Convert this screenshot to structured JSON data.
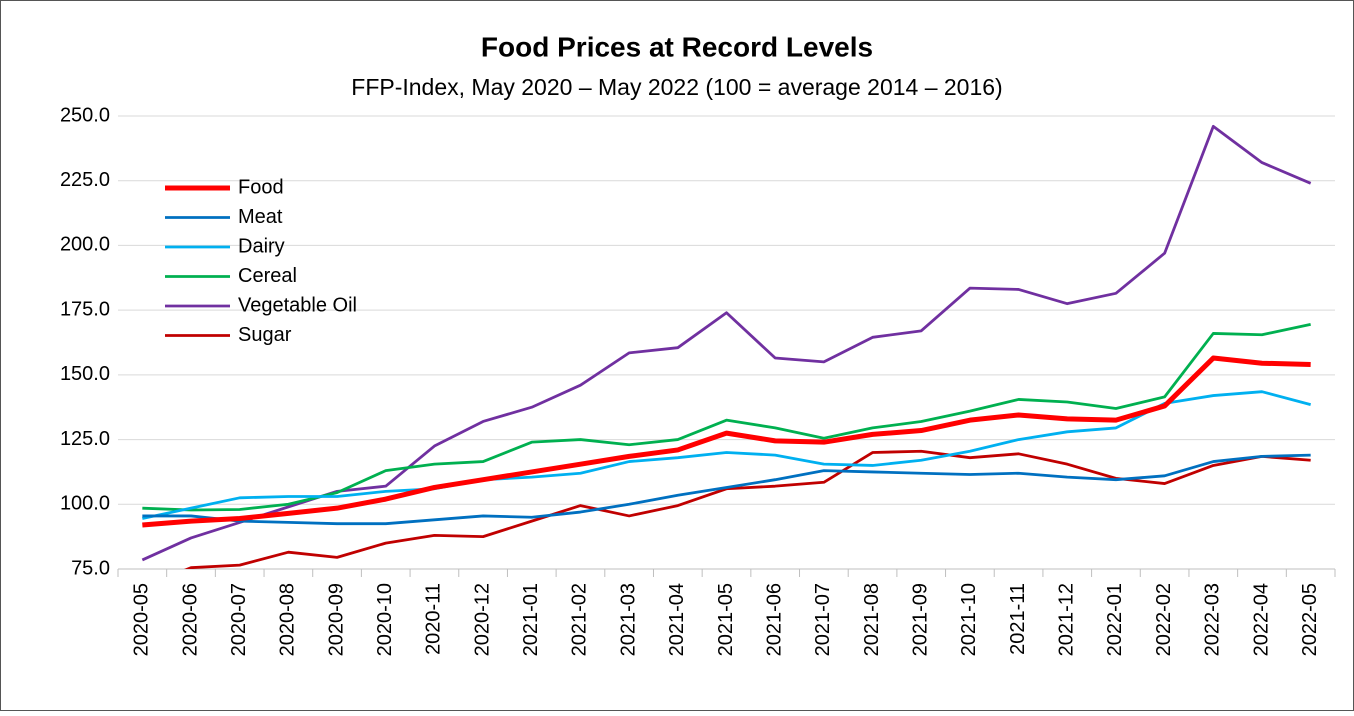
{
  "chart_data": {
    "type": "line",
    "title": "Food Prices at Record Levels",
    "subtitle": "FFP-Index, May 2020 – May 2022 (100 = average 2014 – 2016)",
    "categories": [
      "2020-05",
      "2020-06",
      "2020-07",
      "2020-08",
      "2020-09",
      "2020-10",
      "2020-11",
      "2020-12",
      "2021-01",
      "2021-02",
      "2021-03",
      "2021-04",
      "2021-05",
      "2021-06",
      "2021-07",
      "2021-08",
      "2021-09",
      "2021-10",
      "2021-11",
      "2021-12",
      "2022-01",
      "2022-02",
      "2022-03",
      "2022-04",
      "2022-05"
    ],
    "series": [
      {
        "name": "Food",
        "color": "#ff0000",
        "values": [
          92,
          93.5,
          94.5,
          96.5,
          98.5,
          102,
          106.5,
          109.5,
          112.5,
          115.5,
          118.5,
          121,
          127.5,
          124.5,
          124,
          127,
          128.5,
          132.5,
          134.5,
          133,
          132.5,
          138,
          156.5,
          154.5,
          154
        ]
      },
      {
        "name": "Meat",
        "color": "#0070c0",
        "values": [
          95.5,
          95.5,
          93.5,
          93,
          92.5,
          92.5,
          94,
          95.5,
          95,
          97,
          100,
          103.5,
          106.5,
          109.5,
          113,
          112.5,
          112,
          111.5,
          112,
          110.5,
          109.5,
          111,
          116.5,
          118.5,
          119
        ]
      },
      {
        "name": "Dairy",
        "color": "#00b0f0",
        "values": [
          94.5,
          98.5,
          102.5,
          103,
          103,
          105,
          106,
          109.5,
          110.5,
          112,
          116.5,
          118,
          120,
          119,
          115.5,
          115,
          117,
          120.5,
          125,
          128,
          129.5,
          139,
          142,
          143.5,
          138.5
        ]
      },
      {
        "name": "Cereal",
        "color": "#00b050",
        "values": [
          98.5,
          97.8,
          98,
          100,
          104.5,
          113,
          115.5,
          116.5,
          124,
          125,
          123,
          125,
          132.5,
          129.5,
          125.5,
          129.5,
          132,
          136,
          140.5,
          139.5,
          137,
          141.5,
          166,
          165.5,
          169.5
        ]
      },
      {
        "name": "Vegetable Oil",
        "color": "#7030a0",
        "values": [
          78.5,
          87,
          93,
          99,
          105,
          107,
          122.5,
          132,
          137.5,
          146,
          158.5,
          160.5,
          174,
          156.5,
          155,
          164.5,
          167,
          183.5,
          183,
          177.5,
          181.5,
          197,
          246,
          232,
          224
        ]
      },
      {
        "name": "Sugar",
        "color": "#c00000",
        "values": [
          68,
          75.5,
          76.5,
          81.5,
          79.5,
          85,
          88,
          87.5,
          93.5,
          99.5,
          95.5,
          99.5,
          106,
          107,
          108.5,
          120,
          120.5,
          118,
          119.5,
          115.5,
          110,
          108,
          115,
          118.5,
          117
        ]
      }
    ],
    "ylim": [
      75,
      250
    ],
    "yticks": [
      {
        "value": 75,
        "label": "75.0"
      },
      {
        "value": 100,
        "label": "100.0"
      },
      {
        "value": 125,
        "label": "125.0"
      },
      {
        "value": 150,
        "label": "150.0"
      },
      {
        "value": 175,
        "label": "175.0"
      },
      {
        "value": 200,
        "label": "200.0"
      },
      {
        "value": 225,
        "label": "225.0"
      },
      {
        "value": 250,
        "label": "250.0"
      }
    ],
    "grid": true,
    "legend": "upper left"
  }
}
